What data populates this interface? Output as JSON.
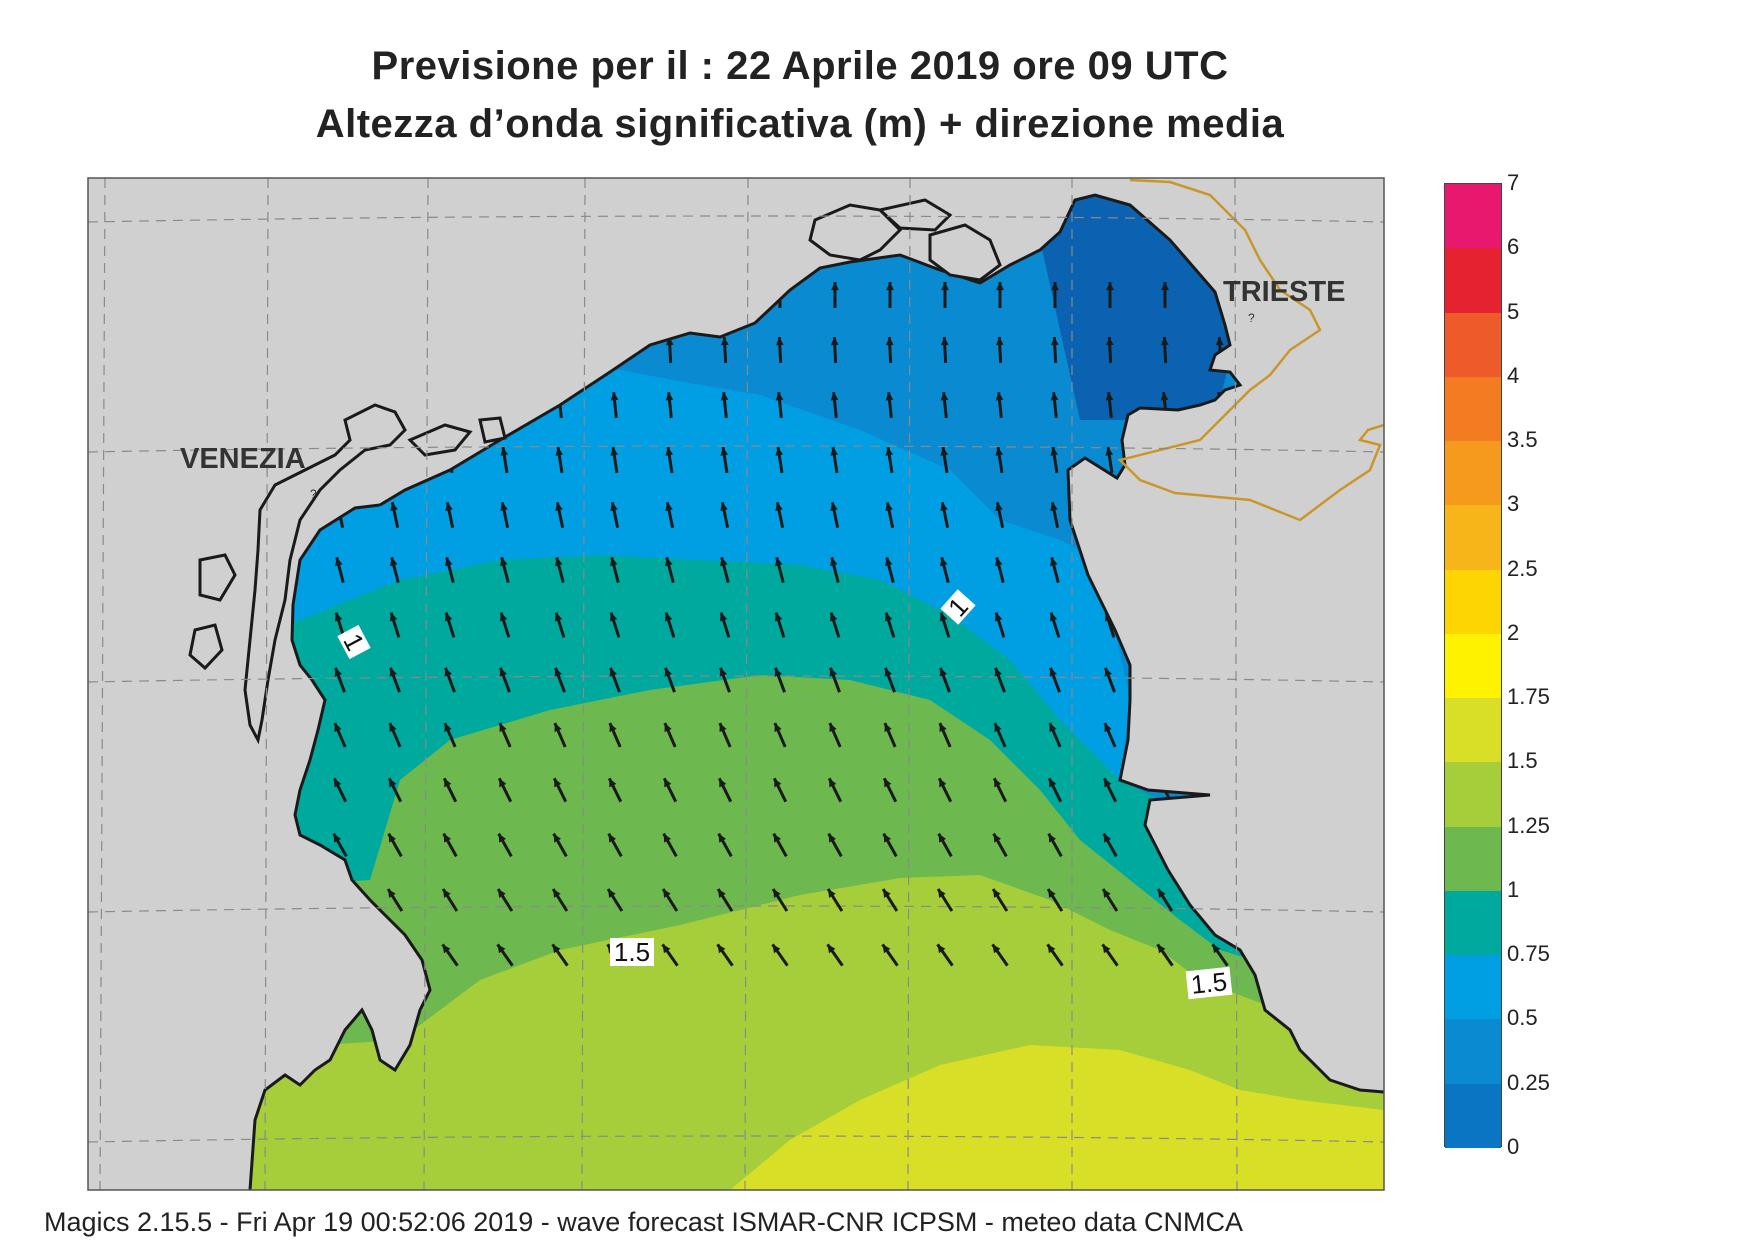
{
  "title": {
    "line1": "Previsione per il  :  22   Aprile  2019   ore 09 UTC",
    "line2": "Altezza d’onda significativa (m) + direzione media"
  },
  "map": {
    "cities": [
      {
        "name": "VENEZIA",
        "id": "venezia"
      },
      {
        "name": "TRIESTE",
        "id": "trieste"
      }
    ],
    "contour_labels": [
      {
        "text": "1",
        "id": "c1a"
      },
      {
        "text": "1",
        "id": "c1b"
      },
      {
        "text": "1.5",
        "id": "c15a"
      },
      {
        "text": "1.5",
        "id": "c15b"
      }
    ],
    "colors": {
      "land": "#d0d0d0",
      "coast": "#1a1a1a",
      "border": "#c9962c",
      "grid": "#8a8a8a",
      "arrow": "#1a1a1a"
    }
  },
  "colorbar": {
    "levels": [
      {
        "label": "7",
        "color": "#e8186e"
      },
      {
        "label": "6",
        "color": "#e52230"
      },
      {
        "label": "5",
        "color": "#ee5a2a"
      },
      {
        "label": "4",
        "color": "#f37b22"
      },
      {
        "label": "3.5",
        "color": "#f59a1c"
      },
      {
        "label": "3",
        "color": "#f7b519"
      },
      {
        "label": "2.5",
        "color": "#fcd502"
      },
      {
        "label": "2",
        "color": "#fff200"
      },
      {
        "label": "1.75",
        "color": "#d8df26"
      },
      {
        "label": "1.5",
        "color": "#a6cd3a"
      },
      {
        "label": "1.25",
        "color": "#6db84f"
      },
      {
        "label": "1",
        "color": "#00a99d"
      },
      {
        "label": "0.75",
        "color": "#009fe3"
      },
      {
        "label": "0.5",
        "color": "#0a8bd1"
      },
      {
        "label": "0.25",
        "color": "#0a76c3"
      },
      {
        "label": "0",
        "color": "#0b62b0"
      }
    ]
  },
  "footer": "Magics 2.15.5 - Fri Apr 19 00:52:06 2019 - wave forecast  ISMAR-CNR  ICPSM - meteo data   CNMCA"
}
